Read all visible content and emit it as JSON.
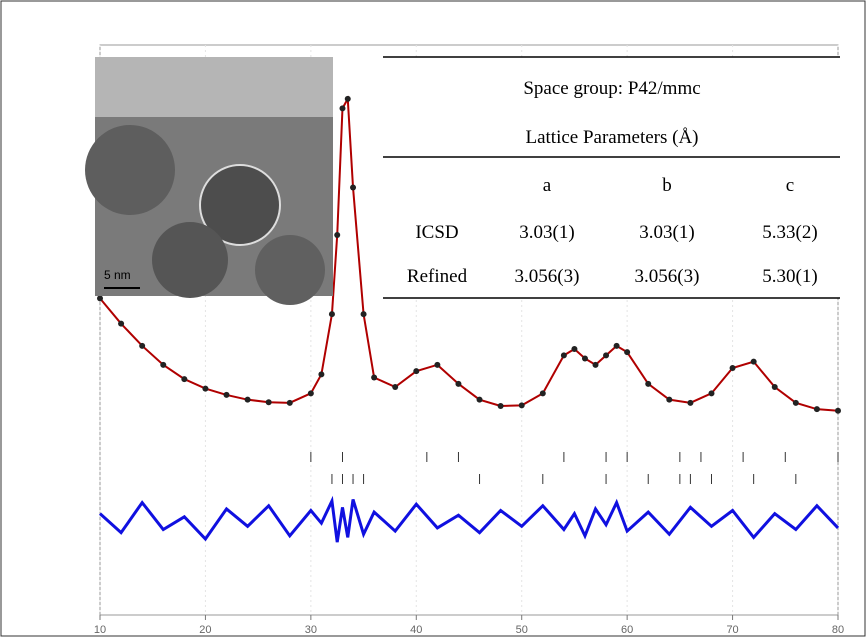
{
  "chart_data": {
    "type": "line",
    "x": [
      10,
      12,
      14,
      16,
      18,
      20,
      22,
      24,
      26,
      28,
      30,
      31,
      32,
      32.5,
      33,
      33.5,
      34,
      35,
      36,
      38,
      40,
      42,
      44,
      46,
      48,
      50,
      52,
      54,
      55,
      56,
      57,
      58,
      59,
      60,
      62,
      64,
      66,
      68,
      70,
      72,
      74,
      76,
      78,
      80
    ],
    "series": [
      {
        "color": "#b00000",
        "values": [
          700,
          620,
          550,
          490,
          445,
          415,
          395,
          380,
          372,
          370,
          400,
          460,
          650,
          900,
          1300,
          1330,
          1050,
          650,
          450,
          420,
          470,
          490,
          430,
          380,
          360,
          362,
          400,
          520,
          540,
          510,
          490,
          520,
          550,
          530,
          430,
          380,
          370,
          400,
          480,
          500,
          420,
          370,
          350,
          345
        ]
      },
      {
        "color": "#1010e0",
        "values": [
          20,
          -40,
          55,
          -30,
          10,
          -60,
          35,
          -20,
          45,
          -50,
          30,
          -10,
          60,
          -70,
          40,
          -55,
          65,
          -45,
          25,
          -35,
          50,
          -25,
          15,
          -40,
          30,
          -20,
          45,
          -30,
          20,
          -50,
          35,
          -15,
          55,
          -35,
          25,
          -45,
          40,
          -20,
          30,
          -55,
          20,
          -30,
          45,
          -25
        ]
      }
    ],
    "reflections": [
      {
        "color": "#333333",
        "x": [
          30,
          33,
          41,
          44,
          54,
          58,
          60,
          65,
          67,
          71,
          75,
          80
        ]
      },
      {
        "color": "#333333",
        "x": [
          32,
          33,
          34,
          35,
          46,
          52,
          58,
          62,
          65,
          66,
          68,
          72,
          76
        ]
      }
    ],
    "xlim": [
      10,
      80
    ],
    "xticks": [
      10,
      20,
      30,
      40,
      50,
      60,
      70,
      80
    ],
    "ylim": [
      -300,
      1500
    ],
    "grid": true
  },
  "table": {
    "caption": "Space group: P42/mmc",
    "subcaption": "Lattice Parameters (Å)",
    "header": [
      "a",
      "b",
      "c"
    ],
    "rows": [
      [
        "ICSD",
        "3.03(1)",
        "3.03(1)",
        "5.33(2)"
      ],
      [
        "Refined",
        "3.056(3)",
        "3.056(3)",
        "5.30(1)"
      ]
    ]
  },
  "inset": {
    "scale_bar": "5 nm"
  }
}
